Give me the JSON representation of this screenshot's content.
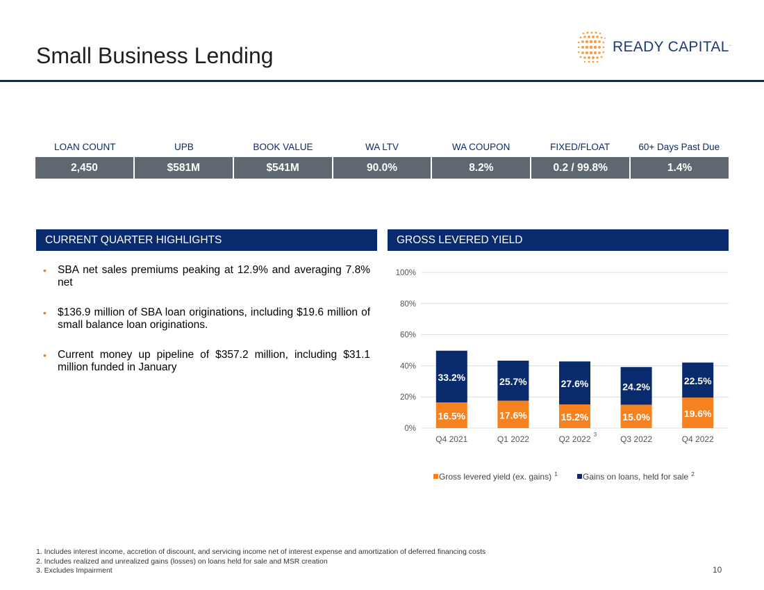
{
  "header": {
    "title": "Small Business Lending",
    "logo_text": "READY CAPITAL",
    "logo_mark": "."
  },
  "stats": {
    "headers": [
      "LOAN COUNT",
      "UPB",
      "BOOK VALUE",
      "WA LTV",
      "WA COUPON",
      "FIXED/FLOAT",
      "60+ Days Past Due"
    ],
    "values": [
      "2,450",
      "$581M",
      "$541M",
      "90.0%",
      "8.2%",
      "0.2 / 99.8%",
      "1.4%"
    ]
  },
  "highlights": {
    "heading": "CURRENT QUARTER HIGHLIGHTS",
    "items": [
      "SBA net sales premiums peaking at 12.9% and averaging 7.8% net",
      "$136.9 million of SBA loan originations, including $19.6 million of small balance loan originations.",
      "Current money up pipeline of $357.2 million, including $31.1 million funded in January"
    ],
    "bullet": "•"
  },
  "yield_panel": {
    "heading": "GROSS LEVERED YIELD"
  },
  "chart_data": {
    "type": "bar",
    "stacked": true,
    "categories": [
      "Q4 2021",
      "Q1 2022",
      "Q2 2022",
      "Q3 2022",
      "Q4 2022"
    ],
    "category_superscripts": [
      "",
      "",
      "3",
      "",
      ""
    ],
    "series": [
      {
        "name": "Gross levered yield (ex. gains)",
        "superscript": "1",
        "color": "#f5821f",
        "values": [
          16.5,
          17.6,
          15.2,
          15.0,
          19.6
        ],
        "labels": [
          "16.5%",
          "17.6%",
          "15.2%",
          "15.0%",
          "19.6%"
        ]
      },
      {
        "name": "Gains on loans, held for sale",
        "superscript": "2",
        "color": "#0a2a6e",
        "values": [
          33.2,
          25.7,
          27.6,
          24.2,
          22.5
        ],
        "labels": [
          "33.2%",
          "25.7%",
          "27.6%",
          "24.2%",
          "22.5%"
        ]
      }
    ],
    "yticks": [
      0,
      20,
      40,
      60,
      80,
      100
    ],
    "ytick_labels": [
      "0%",
      "20%",
      "40%",
      "60%",
      "80%",
      "100%"
    ],
    "ylim": [
      0,
      100
    ],
    "grid": true,
    "legend": "bottom"
  },
  "footnotes": [
    "1. Includes interest income, accretion of discount, and servicing income net of interest expense and amortization of deferred financing costs",
    "2. Includes realized and unrealized gains (losses) on loans held for sale and MSR creation",
    "3. Excludes Impairment"
  ],
  "page_number": "10"
}
